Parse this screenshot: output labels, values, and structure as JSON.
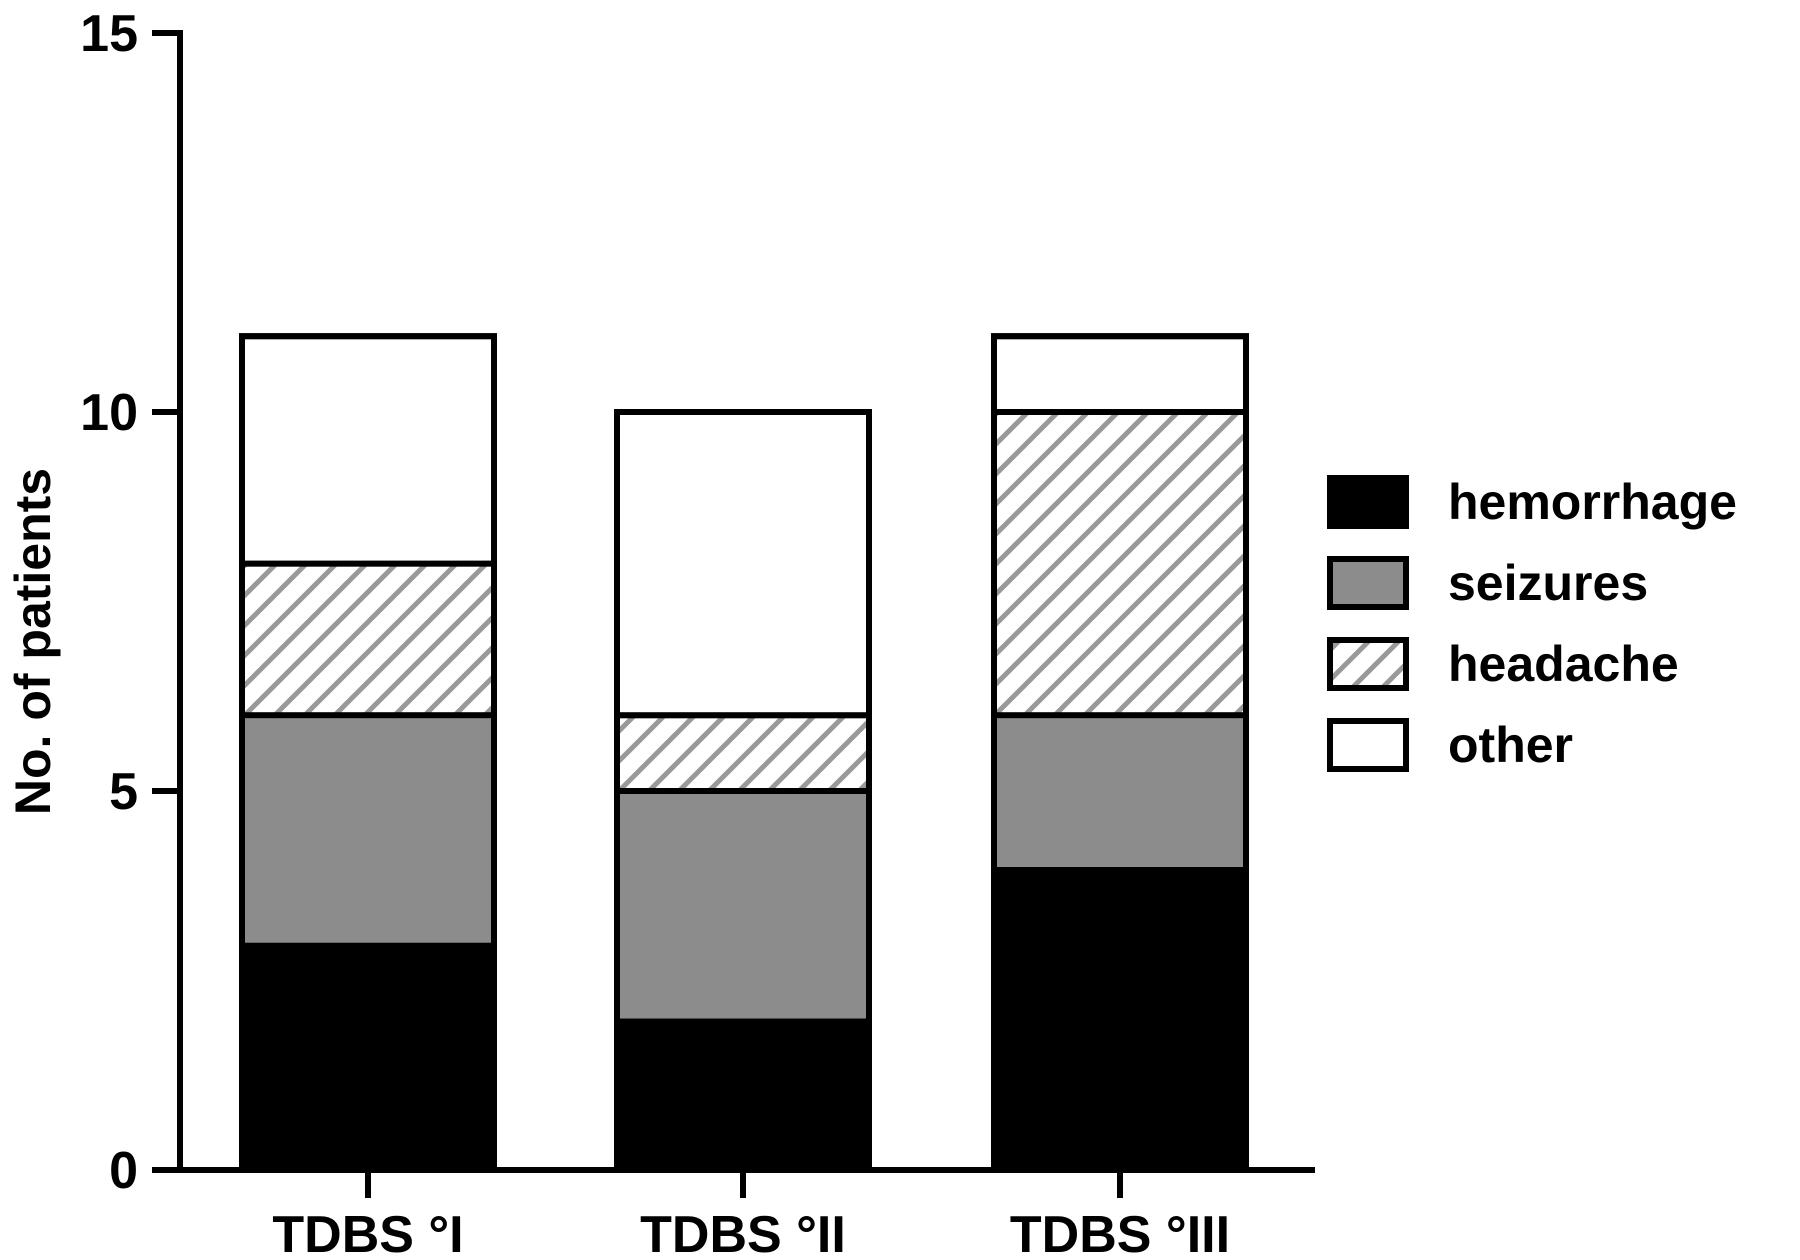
{
  "chart_data": {
    "type": "bar",
    "stacked": true,
    "categories": [
      "TDBS °I",
      "TDBS °II",
      "TDBS °III"
    ],
    "series": [
      {
        "name": "hemorrhage",
        "values": [
          3,
          2,
          4
        ],
        "color": "#000000",
        "pattern": "solid"
      },
      {
        "name": "seizures",
        "values": [
          3,
          3,
          2
        ],
        "color": "#8c8c8c",
        "pattern": "solid"
      },
      {
        "name": "headache",
        "values": [
          2,
          1,
          4
        ],
        "color": "#ffffff",
        "pattern": "diagonal-hatch"
      },
      {
        "name": "other",
        "values": [
          3,
          4,
          1
        ],
        "color": "#ffffff",
        "pattern": "solid"
      }
    ],
    "ylabel": "No. of patients",
    "xlabel": "",
    "ylim": [
      0,
      15
    ],
    "yticks": [
      "0",
      "5",
      "10",
      "15"
    ],
    "grid": false,
    "legend_position": "right"
  }
}
